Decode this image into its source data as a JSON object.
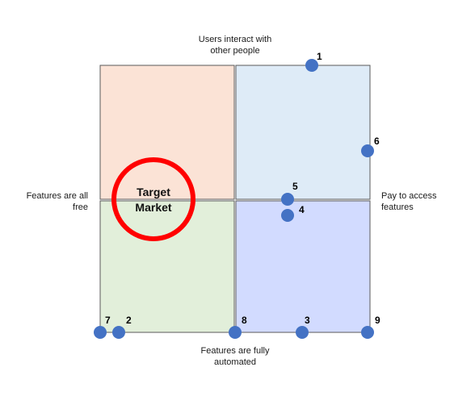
{
  "axes": {
    "top": [
      "Users interact with",
      "other people"
    ],
    "bottom": [
      "Features are fully",
      "automated"
    ],
    "left": [
      "Features are all",
      "free"
    ],
    "right": [
      "Pay to access",
      "features"
    ]
  },
  "quadrants": [
    {
      "id": "top-left",
      "fill": "#fbe3d6"
    },
    {
      "id": "top-right",
      "fill": "#deebf7"
    },
    {
      "id": "bottom-left",
      "fill": "#e2efda"
    },
    {
      "id": "bottom-right",
      "fill": "#d2dbff"
    }
  ],
  "target": {
    "lines": [
      "Target",
      "Market"
    ],
    "ring_color": "#ff0000"
  },
  "points": [
    {
      "label": "1"
    },
    {
      "label": "6"
    },
    {
      "label": "5"
    },
    {
      "label": "4"
    },
    {
      "label": "7"
    },
    {
      "label": "2"
    },
    {
      "label": "8"
    },
    {
      "label": "3"
    },
    {
      "label": "9"
    }
  ],
  "colors": {
    "point": "#4472c4",
    "border": "#595959"
  }
}
